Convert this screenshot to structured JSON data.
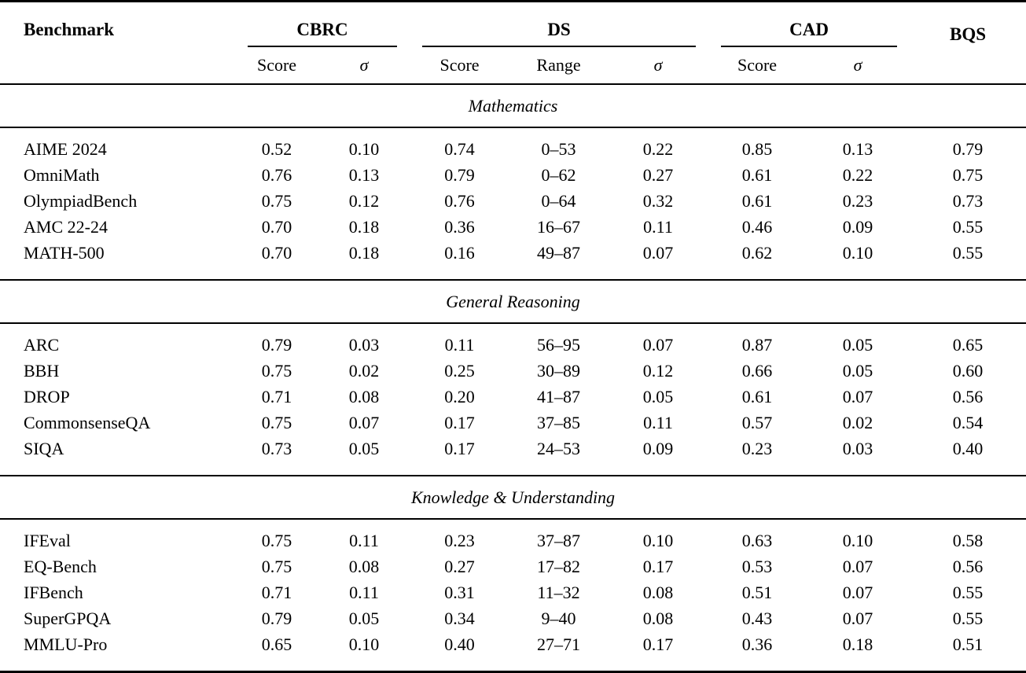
{
  "table": {
    "benchmark_header": "Benchmark",
    "groups": [
      {
        "label": "CBRC",
        "sub": [
          "Score",
          "σ"
        ]
      },
      {
        "label": "DS",
        "sub": [
          "Score",
          "Range",
          "σ"
        ]
      },
      {
        "label": "CAD",
        "sub": [
          "Score",
          "σ"
        ]
      },
      {
        "label": "BQS",
        "sub": []
      }
    ],
    "sections": [
      {
        "title": "Mathematics",
        "rows": [
          {
            "benchmark": "AIME 2024",
            "values": [
              "0.52",
              "0.10",
              "0.74",
              "0–53",
              "0.22",
              "0.85",
              "0.13",
              "0.79"
            ]
          },
          {
            "benchmark": "OmniMath",
            "values": [
              "0.76",
              "0.13",
              "0.79",
              "0–62",
              "0.27",
              "0.61",
              "0.22",
              "0.75"
            ]
          },
          {
            "benchmark": "OlympiadBench",
            "values": [
              "0.75",
              "0.12",
              "0.76",
              "0–64",
              "0.32",
              "0.61",
              "0.23",
              "0.73"
            ]
          },
          {
            "benchmark": "AMC 22-24",
            "values": [
              "0.70",
              "0.18",
              "0.36",
              "16–67",
              "0.11",
              "0.46",
              "0.09",
              "0.55"
            ]
          },
          {
            "benchmark": "MATH-500",
            "values": [
              "0.70",
              "0.18",
              "0.16",
              "49–87",
              "0.07",
              "0.62",
              "0.10",
              "0.55"
            ]
          }
        ]
      },
      {
        "title": "General Reasoning",
        "rows": [
          {
            "benchmark": "ARC",
            "values": [
              "0.79",
              "0.03",
              "0.11",
              "56–95",
              "0.07",
              "0.87",
              "0.05",
              "0.65"
            ]
          },
          {
            "benchmark": "BBH",
            "values": [
              "0.75",
              "0.02",
              "0.25",
              "30–89",
              "0.12",
              "0.66",
              "0.05",
              "0.60"
            ]
          },
          {
            "benchmark": "DROP",
            "values": [
              "0.71",
              "0.08",
              "0.20",
              "41–87",
              "0.05",
              "0.61",
              "0.07",
              "0.56"
            ]
          },
          {
            "benchmark": "CommonsenseQA",
            "values": [
              "0.75",
              "0.07",
              "0.17",
              "37–85",
              "0.11",
              "0.57",
              "0.02",
              "0.54"
            ]
          },
          {
            "benchmark": "SIQA",
            "values": [
              "0.73",
              "0.05",
              "0.17",
              "24–53",
              "0.09",
              "0.23",
              "0.03",
              "0.40"
            ]
          }
        ]
      },
      {
        "title": "Knowledge & Understanding",
        "rows": [
          {
            "benchmark": "IFEval",
            "values": [
              "0.75",
              "0.11",
              "0.23",
              "37–87",
              "0.10",
              "0.63",
              "0.10",
              "0.58"
            ]
          },
          {
            "benchmark": "EQ-Bench",
            "values": [
              "0.75",
              "0.08",
              "0.27",
              "17–82",
              "0.17",
              "0.53",
              "0.07",
              "0.56"
            ]
          },
          {
            "benchmark": "IFBench",
            "values": [
              "0.71",
              "0.11",
              "0.31",
              "11–32",
              "0.08",
              "0.51",
              "0.07",
              "0.55"
            ]
          },
          {
            "benchmark": "SuperGPQA",
            "values": [
              "0.79",
              "0.05",
              "0.34",
              "9–40",
              "0.08",
              "0.43",
              "0.07",
              "0.55"
            ]
          },
          {
            "benchmark": "MMLU-Pro",
            "values": [
              "0.65",
              "0.10",
              "0.40",
              "27–71",
              "0.17",
              "0.36",
              "0.18",
              "0.51"
            ]
          }
        ]
      }
    ]
  }
}
